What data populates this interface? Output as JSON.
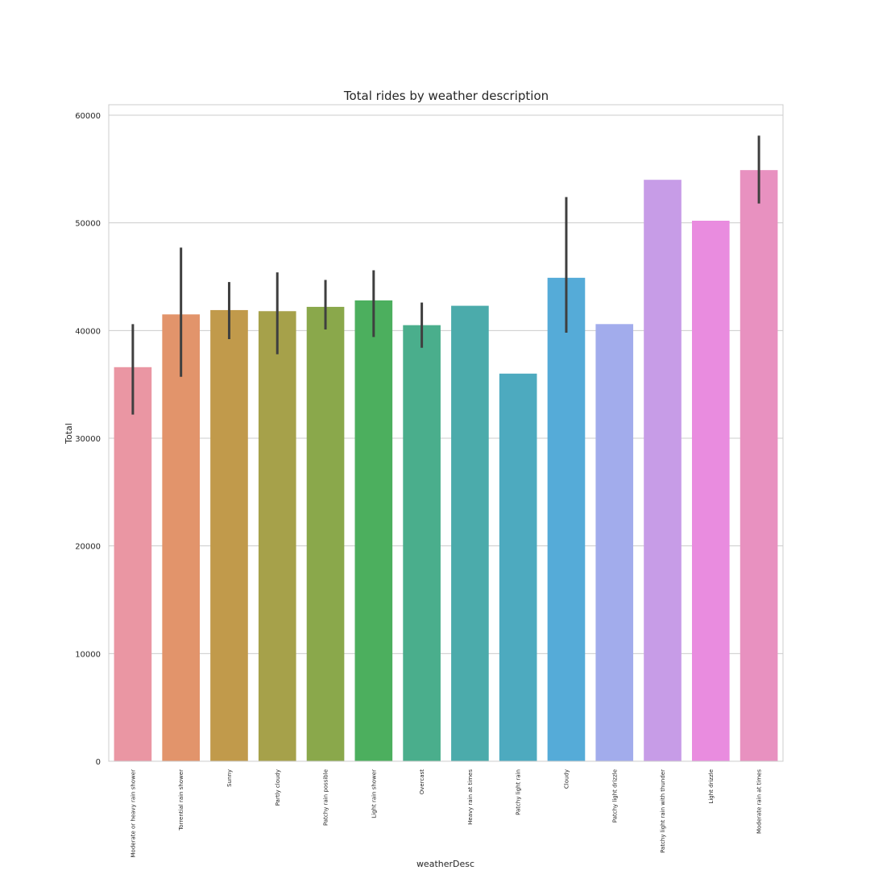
{
  "chart_data": {
    "type": "bar",
    "title": "Total rides by weather description",
    "xlabel": "weatherDesc",
    "ylabel": "Total",
    "ylim": [
      0,
      61000
    ],
    "yticks": [
      0,
      10000,
      20000,
      30000,
      40000,
      50000,
      60000
    ],
    "grid": "horizontal",
    "categories": [
      "Moderate or heavy rain shower",
      "Torrential rain shower",
      "Sunny",
      "Partly cloudy",
      "Patchy rain possible",
      "Light rain shower",
      "Overcast",
      "Heavy rain at times",
      "Patchy light rain",
      "Cloudy",
      "Patchy light drizzle",
      "Patchy light rain with thunder",
      "Light drizzle",
      "Moderate rain at times"
    ],
    "values": [
      36600,
      41500,
      41900,
      41800,
      42200,
      42800,
      40500,
      42300,
      36000,
      44900,
      40600,
      54000,
      50200,
      54900
    ],
    "error_low": [
      32200,
      35700,
      39200,
      37800,
      40100,
      39400,
      38400,
      null,
      null,
      39800,
      null,
      null,
      null,
      51800
    ],
    "error_high": [
      40600,
      47700,
      44500,
      45400,
      44700,
      45600,
      42600,
      null,
      null,
      52400,
      null,
      null,
      null,
      58100
    ],
    "colors": [
      "#ea96a3",
      "#e2946b",
      "#c19a4b",
      "#a6a14a",
      "#8aa84b",
      "#4caf5e",
      "#4aae8c",
      "#4babab",
      "#4daabf",
      "#55abd8",
      "#a2acec",
      "#c79ce7",
      "#e98cdf",
      "#e891c0"
    ]
  }
}
